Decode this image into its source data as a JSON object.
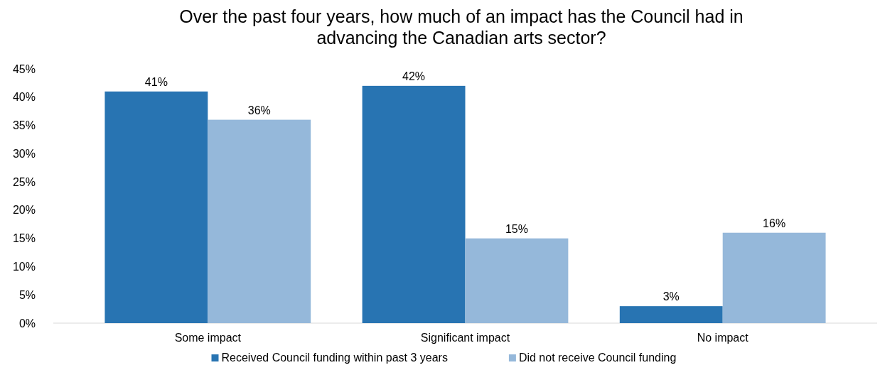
{
  "chart_data": {
    "type": "bar",
    "title": "Over the past four years, how much of an impact has the Council had in\nadvancing the Canadian arts sector?",
    "categories": [
      "Some impact",
      "Significant impact",
      "No impact"
    ],
    "series": [
      {
        "name": "Received Council funding within past 3 years",
        "color": "#2874b2",
        "values": [
          41,
          42,
          3
        ],
        "value_labels": [
          "41%",
          "42%",
          "3%"
        ]
      },
      {
        "name": "Did not receive Council funding",
        "color": "#95b8da",
        "values": [
          36,
          15,
          16
        ],
        "value_labels": [
          "36%",
          "15%",
          "16%"
        ]
      }
    ],
    "ylim": [
      0,
      45
    ],
    "yticks": [
      {
        "value": 0,
        "label": "0%"
      },
      {
        "value": 5,
        "label": "5%"
      },
      {
        "value": 10,
        "label": "10%"
      },
      {
        "value": 15,
        "label": "15%"
      },
      {
        "value": 20,
        "label": "20%"
      },
      {
        "value": 25,
        "label": "25%"
      },
      {
        "value": 30,
        "label": "30%"
      },
      {
        "value": 35,
        "label": "35%"
      },
      {
        "value": 40,
        "label": "40%"
      },
      {
        "value": 45,
        "label": "45%"
      }
    ],
    "grid": false,
    "legend": "bottom"
  }
}
